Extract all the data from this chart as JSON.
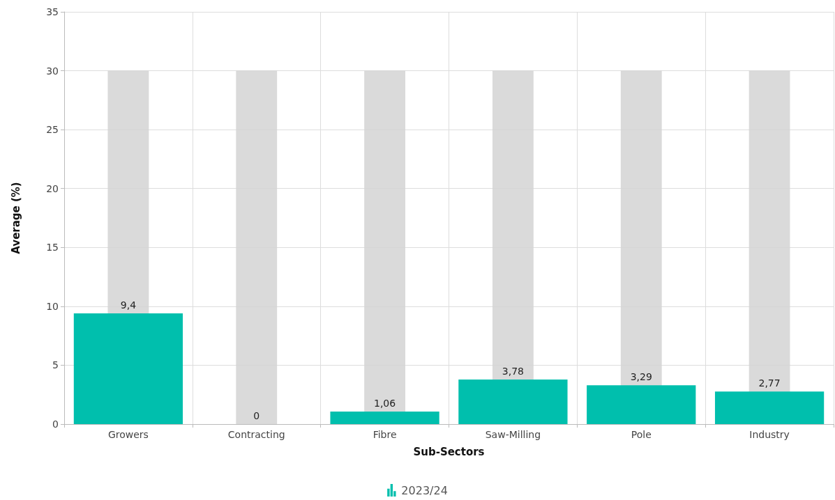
{
  "chart_data": {
    "type": "bar",
    "xlabel": "Sub-Sectors",
    "ylabel": "Average (%)",
    "categories": [
      "Growers",
      "Contracting",
      "Fibre",
      "Saw-Milling",
      "Pole",
      "Industry"
    ],
    "series": [
      {
        "name": "2023/24",
        "color": "#00bfad",
        "values": [
          9.4,
          0,
          1.06,
          3.78,
          3.29,
          2.77
        ],
        "value_labels": [
          "9,4",
          "0",
          "1,06",
          "3,78",
          "3,29",
          "2,77"
        ]
      },
      {
        "color": "#d3d3d3",
        "values": [
          30,
          30,
          30,
          30,
          30,
          30
        ]
      }
    ],
    "ylim": [
      0,
      35
    ],
    "yticks": [
      0,
      5,
      10,
      15,
      20,
      25,
      30,
      35
    ],
    "grid": true,
    "legend": "bottom"
  }
}
